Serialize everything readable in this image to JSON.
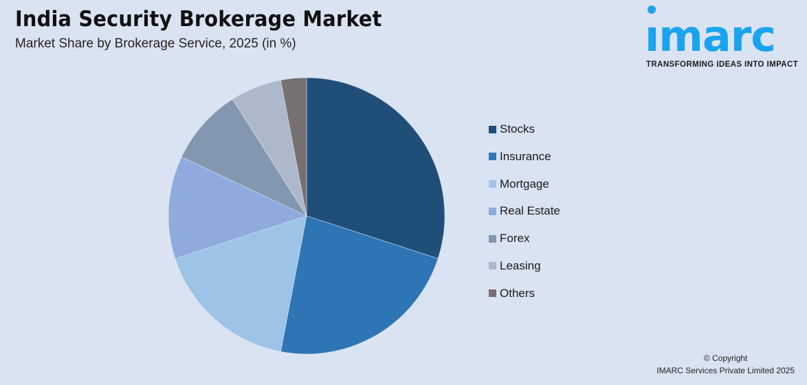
{
  "header": {
    "title": "India Security Brokerage Market",
    "subtitle": "Market Share by Brokerage Service, 2025 (in %)"
  },
  "logo": {
    "word": "ımarc",
    "tagline": "TRANSFORMING IDEAS INTO IMPACT",
    "color": "#1aa3ef"
  },
  "legend": {
    "items": [
      {
        "label": "Stocks",
        "color": "#1f4e79"
      },
      {
        "label": "Insurance",
        "color": "#2e75b6"
      },
      {
        "label": "Mortgage",
        "color": "#9dc3e6"
      },
      {
        "label": "Real Estate",
        "color": "#8faadc"
      },
      {
        "label": "Forex",
        "color": "#8497b0"
      },
      {
        "label": "Leasing",
        "color": "#adb9ca"
      },
      {
        "label": "Others",
        "color": "#767171"
      }
    ]
  },
  "footer": {
    "copyright_line1": "© Copyright",
    "copyright_line2": "IMARC Services Private Limited  2025"
  },
  "chart_data": {
    "type": "pie",
    "title": "India Security Brokerage Market",
    "subtitle": "Market Share by Brokerage Service, 2025 (in %)",
    "categories": [
      "Stocks",
      "Insurance",
      "Mortgage",
      "Real Estate",
      "Forex",
      "Leasing",
      "Others"
    ],
    "values": [
      30,
      23,
      17,
      12,
      9,
      6,
      3
    ],
    "colors": [
      "#1f4e79",
      "#2e75b6",
      "#9dc3e6",
      "#8faadc",
      "#8497b0",
      "#adb9ca",
      "#767171"
    ],
    "start_angle_deg": 0,
    "direction": "clockwise",
    "legend_position": "right",
    "data_labels": false
  }
}
